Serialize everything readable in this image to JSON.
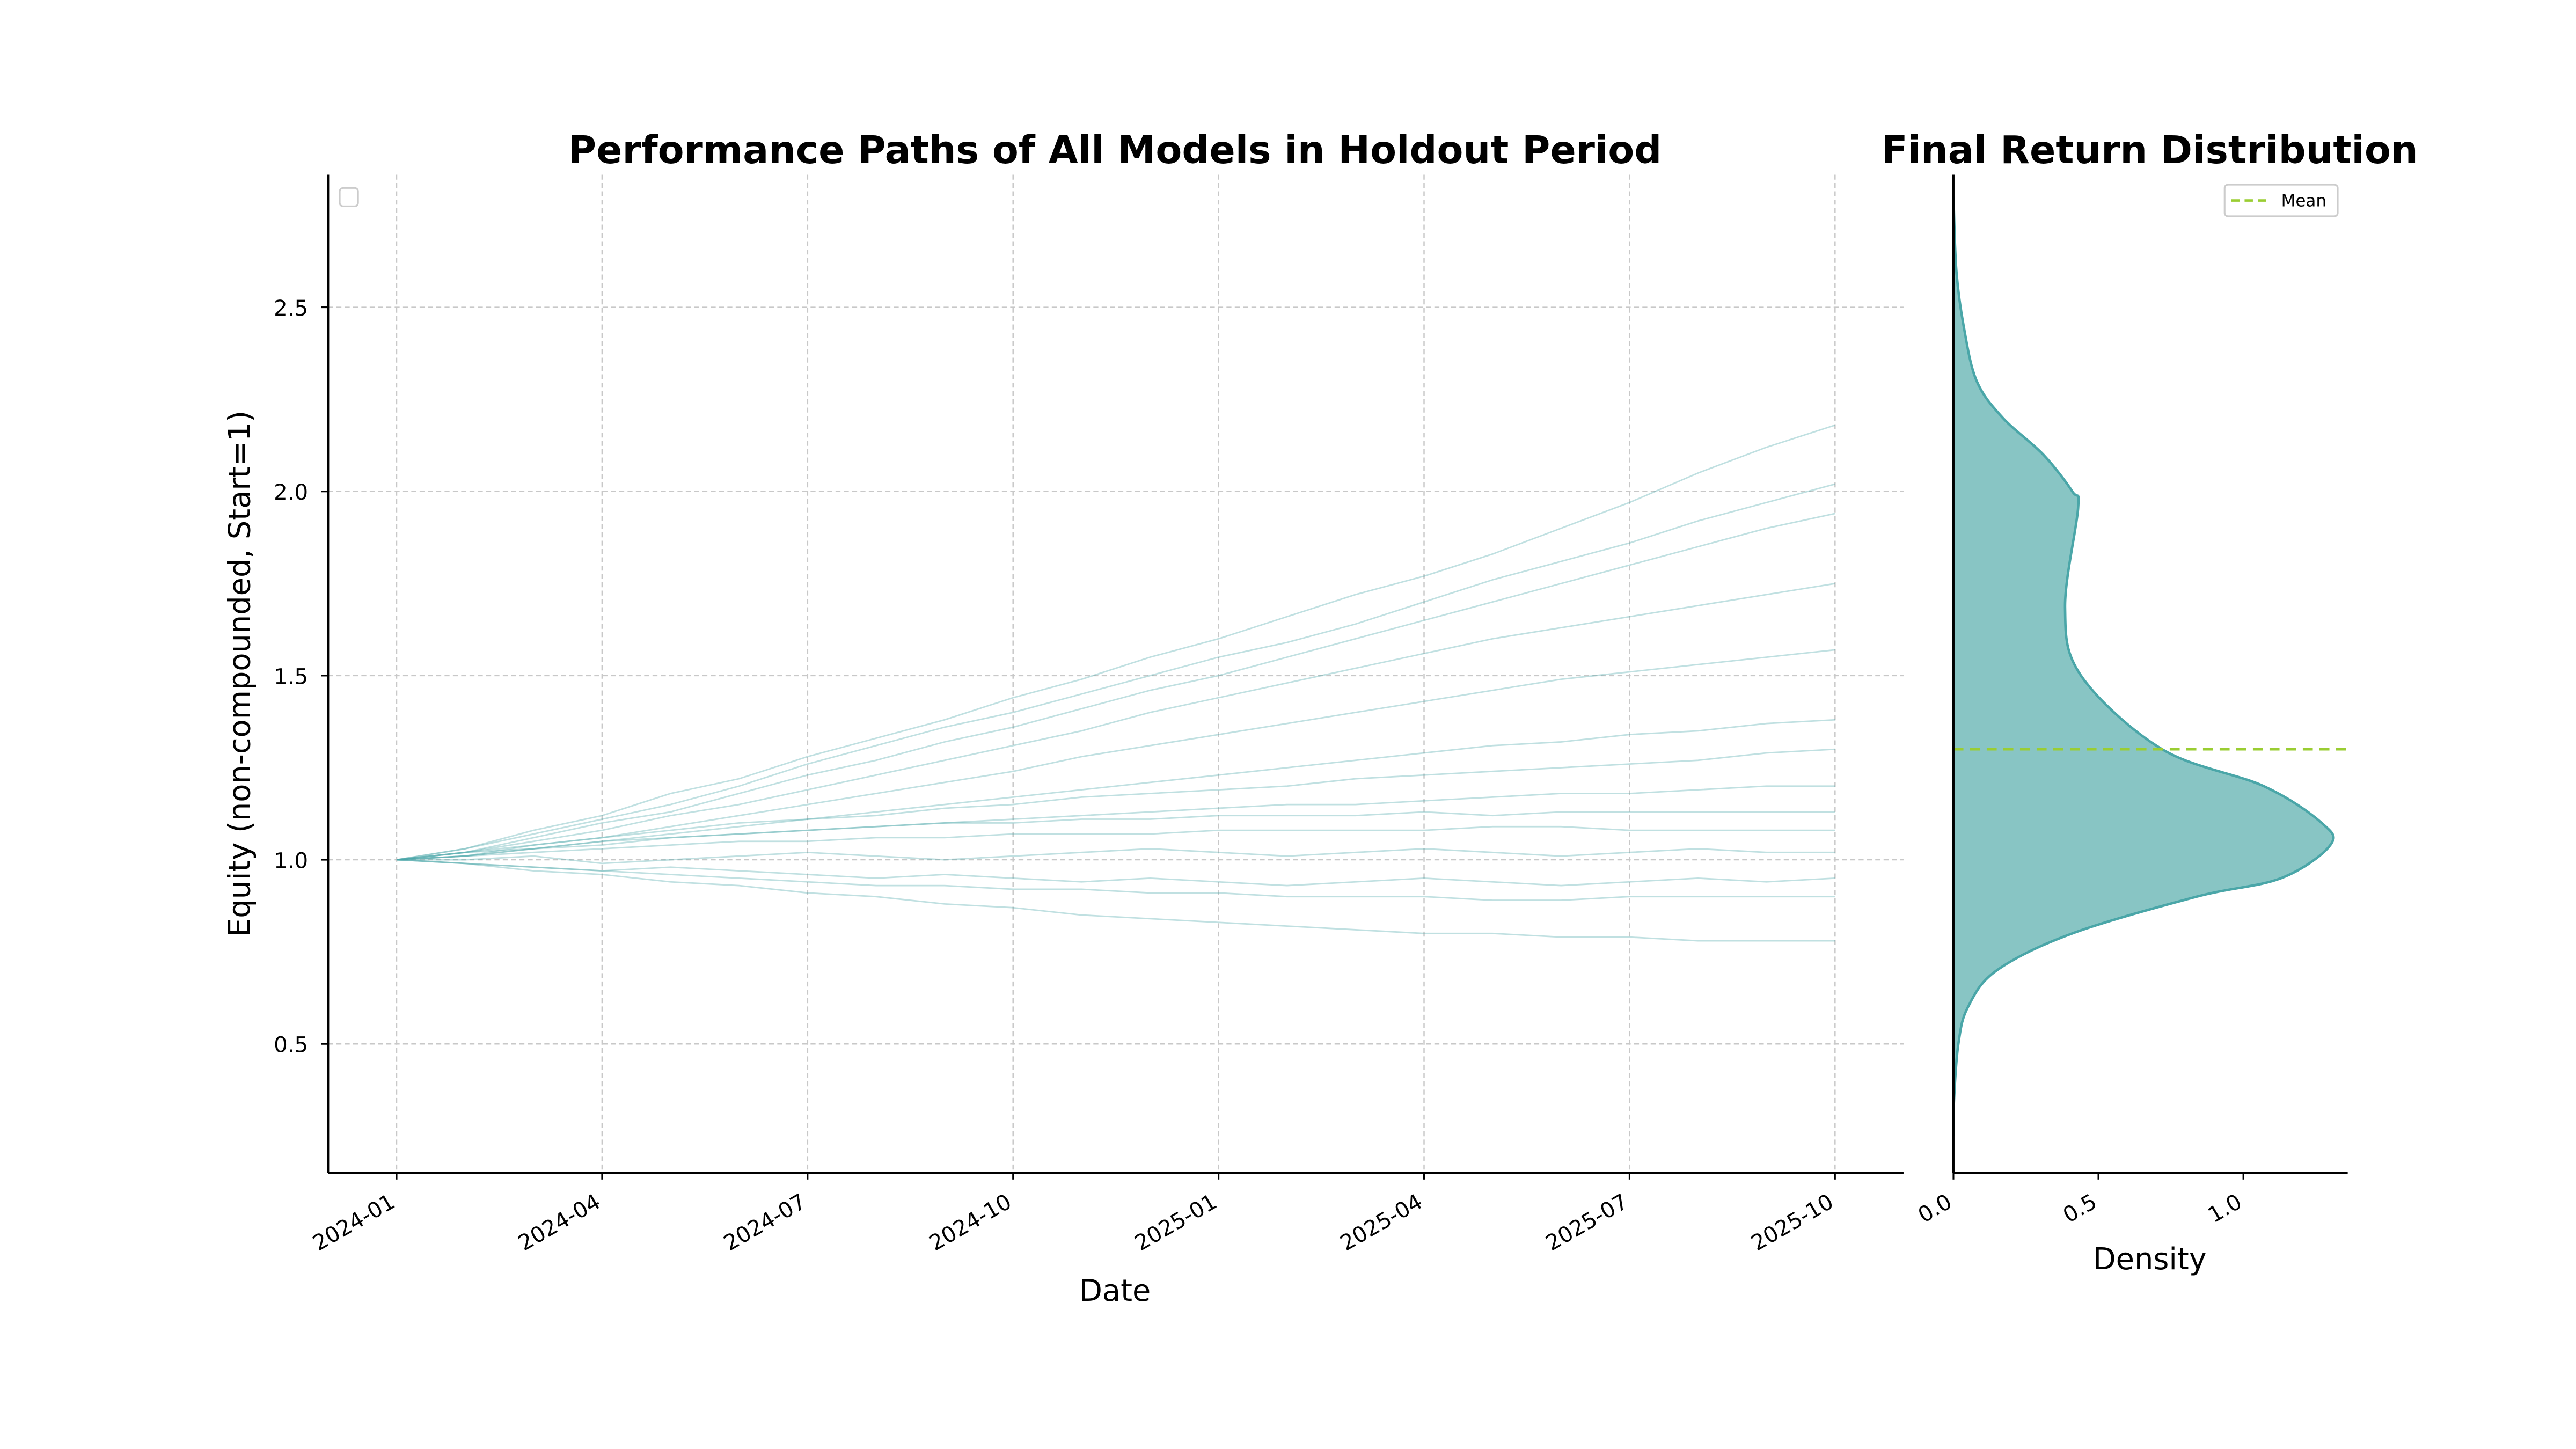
{
  "chart_data": [
    {
      "type": "line",
      "title": "Performance Paths of All Models in Holdout Period",
      "x_label": "Date",
      "y_label": "Equity (non-compounded, Start=1)",
      "color": "#4aa6a8",
      "grid": true,
      "x": [
        "2024-01",
        "2024-02",
        "2024-03",
        "2024-04",
        "2024-05",
        "2024-06",
        "2024-07",
        "2024-08",
        "2024-09",
        "2024-10",
        "2024-11",
        "2024-12",
        "2025-01",
        "2025-02",
        "2025-03",
        "2025-04",
        "2025-05",
        "2025-06",
        "2025-07",
        "2025-08",
        "2025-09",
        "2025-10"
      ],
      "xlim": [
        "2023-12",
        "2025-11"
      ],
      "xticks": [
        "2024-01",
        "2024-04",
        "2024-07",
        "2024-10",
        "2025-01",
        "2025-04",
        "2025-07",
        "2025-10"
      ],
      "ylim": [
        0.15,
        2.86
      ],
      "yticks": [
        0.5,
        {
          "value": 1,
          "label": "1.0"
        },
        1.5,
        {
          "value": 2,
          "label": "2.0"
        },
        2.5
      ],
      "series": [
        {
          "values": [
            1.0,
            1.03,
            1.08,
            1.12,
            1.18,
            1.22,
            1.28,
            1.33,
            1.38,
            1.44,
            1.49,
            1.55,
            1.6,
            1.66,
            1.72,
            1.77,
            1.83,
            1.9,
            1.97,
            2.05,
            2.12,
            2.18
          ]
        },
        {
          "values": [
            1.0,
            1.03,
            1.07,
            1.11,
            1.15,
            1.2,
            1.26,
            1.31,
            1.36,
            1.4,
            1.45,
            1.5,
            1.55,
            1.59,
            1.64,
            1.7,
            1.76,
            1.81,
            1.86,
            1.92,
            1.97,
            2.02
          ]
        },
        {
          "values": [
            1.0,
            1.02,
            1.06,
            1.1,
            1.13,
            1.18,
            1.23,
            1.27,
            1.32,
            1.36,
            1.41,
            1.46,
            1.5,
            1.55,
            1.6,
            1.65,
            1.7,
            1.75,
            1.8,
            1.85,
            1.9,
            1.94
          ]
        },
        {
          "values": [
            1.0,
            1.02,
            1.05,
            1.08,
            1.12,
            1.15,
            1.19,
            1.23,
            1.27,
            1.31,
            1.35,
            1.4,
            1.44,
            1.48,
            1.52,
            1.56,
            1.6,
            1.63,
            1.66,
            1.69,
            1.72,
            1.75
          ]
        },
        {
          "values": [
            1.0,
            1.01,
            1.04,
            1.06,
            1.09,
            1.12,
            1.15,
            1.18,
            1.21,
            1.24,
            1.28,
            1.31,
            1.34,
            1.37,
            1.4,
            1.43,
            1.46,
            1.49,
            1.51,
            1.53,
            1.55,
            1.57
          ]
        },
        {
          "values": [
            1.0,
            1.01,
            1.03,
            1.05,
            1.07,
            1.09,
            1.11,
            1.13,
            1.15,
            1.17,
            1.19,
            1.21,
            1.23,
            1.25,
            1.27,
            1.29,
            1.31,
            1.32,
            1.34,
            1.35,
            1.37,
            1.38
          ]
        },
        {
          "values": [
            1.0,
            1.02,
            1.04,
            1.06,
            1.08,
            1.1,
            1.11,
            1.12,
            1.14,
            1.15,
            1.17,
            1.18,
            1.19,
            1.2,
            1.22,
            1.23,
            1.24,
            1.25,
            1.26,
            1.27,
            1.29,
            1.3
          ]
        },
        {
          "values": [
            1.0,
            1.01,
            1.03,
            1.04,
            1.06,
            1.07,
            1.08,
            1.09,
            1.1,
            1.11,
            1.12,
            1.13,
            1.14,
            1.15,
            1.15,
            1.16,
            1.17,
            1.18,
            1.18,
            1.19,
            1.2,
            1.2
          ]
        },
        {
          "values": [
            1.0,
            1.01,
            1.02,
            1.03,
            1.04,
            1.05,
            1.05,
            1.06,
            1.06,
            1.07,
            1.07,
            1.07,
            1.08,
            1.08,
            1.08,
            1.08,
            1.09,
            1.09,
            1.08,
            1.08,
            1.08,
            1.08
          ]
        },
        {
          "values": [
            1.0,
            1.0,
            1.01,
            0.99,
            1.0,
            1.01,
            1.02,
            1.01,
            1.0,
            1.01,
            1.02,
            1.03,
            1.02,
            1.01,
            1.02,
            1.03,
            1.02,
            1.01,
            1.02,
            1.03,
            1.02,
            1.02
          ]
        },
        {
          "values": [
            1.0,
            0.99,
            0.98,
            0.97,
            0.98,
            0.97,
            0.96,
            0.95,
            0.96,
            0.95,
            0.94,
            0.95,
            0.94,
            0.93,
            0.94,
            0.95,
            0.94,
            0.93,
            0.94,
            0.95,
            0.94,
            0.95
          ]
        },
        {
          "values": [
            1.0,
            0.99,
            0.97,
            0.96,
            0.94,
            0.93,
            0.91,
            0.9,
            0.88,
            0.87,
            0.85,
            0.84,
            0.83,
            0.82,
            0.81,
            0.8,
            0.8,
            0.79,
            0.79,
            0.78,
            0.78,
            0.78
          ]
        },
        {
          "values": [
            1.0,
            0.99,
            0.98,
            0.97,
            0.96,
            0.95,
            0.94,
            0.93,
            0.93,
            0.92,
            0.92,
            0.91,
            0.91,
            0.9,
            0.9,
            0.9,
            0.89,
            0.89,
            0.9,
            0.9,
            0.9,
            0.9
          ]
        },
        {
          "values": [
            1.0,
            1.02,
            1.03,
            1.05,
            1.06,
            1.07,
            1.08,
            1.09,
            1.1,
            1.1,
            1.11,
            1.11,
            1.12,
            1.12,
            1.12,
            1.13,
            1.12,
            1.13,
            1.13,
            1.13,
            1.13,
            1.13
          ]
        }
      ]
    },
    {
      "type": "density",
      "title": "Final Return Distribution",
      "x_label": "Density",
      "fill": "#88c5c4",
      "color": "#4aa6a8",
      "y": [
        0.25,
        0.35,
        0.5,
        0.6,
        0.7,
        0.8,
        0.9,
        0.95,
        1.04,
        1.1,
        1.2,
        1.3,
        1.5,
        1.685,
        1.955,
        2.0,
        2.1,
        2.2,
        2.3,
        2.45,
        2.6,
        2.8
      ],
      "values": [
        0,
        0.002,
        0.017,
        0.05,
        0.15,
        0.41,
        0.84,
        1.13,
        1.3,
        1.27,
        1.07,
        0.72,
        0.44,
        0.385,
        0.43,
        0.41,
        0.31,
        0.17,
        0.08,
        0.035,
        0.01,
        0
      ],
      "xlim": [
        0,
        1.36
      ],
      "xticks": [
        {
          "value": 0,
          "label": "0.0"
        },
        0.5,
        {
          "value": 1,
          "label": "1.0"
        }
      ],
      "ylim": [
        0.15,
        2.86
      ],
      "mean": {
        "label": "Mean",
        "value": 1.3,
        "color": "#9acd32"
      }
    }
  ]
}
